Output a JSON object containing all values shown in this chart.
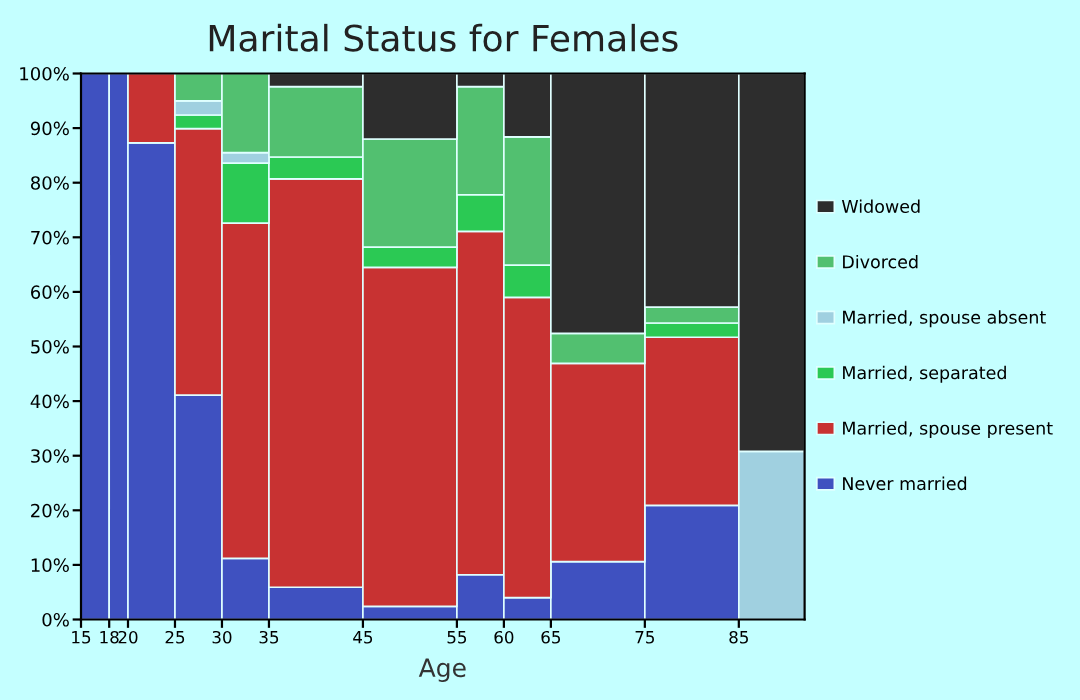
{
  "chart_data": {
    "type": "bar",
    "stacked": true,
    "title": "Marital Status for Females",
    "xlabel": "Age",
    "x": [
      16.5,
      19,
      22.5,
      27.5,
      32.5,
      40,
      50,
      57.5,
      62.5,
      70,
      80,
      88.5
    ],
    "xlim": [
      15,
      92
    ],
    "xticks": [
      15,
      18,
      20,
      25,
      30,
      35,
      45,
      55,
      60,
      65,
      75,
      85
    ],
    "ylim": [
      0,
      100
    ],
    "yticks": [
      {
        "value": 0,
        "label": "0%"
      },
      {
        "value": 10,
        "label": "10%"
      },
      {
        "value": 20,
        "label": "20%"
      },
      {
        "value": 30,
        "label": "30%"
      },
      {
        "value": 40,
        "label": "40%"
      },
      {
        "value": 50,
        "label": "50%"
      },
      {
        "value": 60,
        "label": "60%"
      },
      {
        "value": 70,
        "label": "70%"
      },
      {
        "value": 80,
        "label": "80%"
      },
      {
        "value": 90,
        "label": "90%"
      },
      {
        "value": 100,
        "label": "100%"
      }
    ],
    "grid": false,
    "legend": "right",
    "series": [
      {
        "name": "Never married",
        "color": "#3f51c0",
        "values": [
          100,
          100,
          87.3,
          41.1,
          11.2,
          5.9,
          2.4,
          8.2,
          4.0,
          10.6,
          20.9,
          0
        ]
      },
      {
        "name": "Married, spouse present",
        "color": "#c83232",
        "values": [
          0,
          0,
          12.7,
          48.8,
          61.4,
          74.8,
          62.1,
          62.9,
          55.0,
          36.3,
          30.8,
          0
        ]
      },
      {
        "name": "Married, separated",
        "color": "#2bc954",
        "values": [
          0,
          0,
          0,
          2.5,
          11.0,
          4.0,
          3.7,
          6.7,
          5.9,
          0,
          2.6,
          0
        ]
      },
      {
        "name": "Married, spouse absent",
        "color": "#a0d0e0",
        "values": [
          0,
          0,
          0,
          2.6,
          1.9,
          0,
          0,
          0,
          0,
          0,
          0,
          30.8
        ]
      },
      {
        "name": "Divorced",
        "color": "#52c070",
        "values": [
          0,
          0,
          0,
          5.0,
          14.5,
          12.9,
          19.8,
          19.8,
          23.5,
          5.5,
          2.9,
          0
        ]
      },
      {
        "name": "Widowed",
        "color": "#2d2d2d",
        "values": [
          0,
          0,
          0,
          0,
          0,
          2.4,
          12.0,
          2.4,
          11.6,
          47.6,
          42.8,
          69.2
        ]
      }
    ]
  }
}
